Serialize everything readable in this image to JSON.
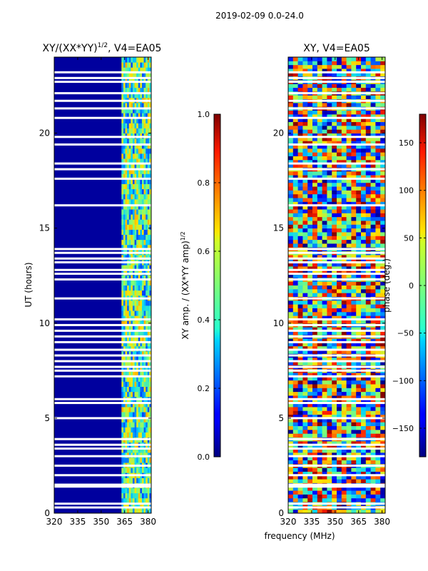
{
  "figure": {
    "suptitle": "2019-02-09 0.0-24.0",
    "shared_xlabel": "frequency (MHz)"
  },
  "chart_data": [
    {
      "type": "heatmap",
      "title_main": "XY/(XX*YY)",
      "title_sup": "1/2",
      "title_tail": ", V4=EA05",
      "xlabel": "",
      "ylabel": "UT (hours)",
      "xlim": [
        320,
        382
      ],
      "ylim": [
        0,
        24
      ],
      "xticks": [
        320,
        335,
        350,
        365,
        380
      ],
      "yticks": [
        0,
        5,
        10,
        15,
        20
      ],
      "colormap": "jet",
      "colorbar": {
        "label_main": "XY amp. / (XX*YY amp)",
        "label_sup": "1/2",
        "range": [
          0.0,
          1.0
        ],
        "ticks": [
          "0.0",
          "0.2",
          "0.4",
          "0.6",
          "0.8",
          "1.0"
        ]
      },
      "description_bands_mhz": [
        363,
        382
      ],
      "flagged_gaps_hours": [
        0.3,
        0.5,
        1.4,
        1.5,
        2.0,
        2.5,
        3.0,
        3.4,
        3.6,
        3.9,
        5.0,
        5.8,
        6.0,
        7.2,
        7.5,
        7.7,
        8.0,
        8.3,
        8.6,
        9.0,
        9.3,
        9.6,
        9.9,
        10.2,
        11.3,
        12.3,
        12.6,
        12.8,
        13.2,
        13.4,
        13.7,
        13.9,
        16.2,
        17.6,
        18.1,
        18.4,
        19.4,
        19.8,
        20.8,
        21.3,
        21.7,
        22.1,
        22.7,
        22.9,
        23.2
      ]
    },
    {
      "type": "heatmap",
      "title_main": "XY, V4=EA05",
      "title_sup": "",
      "title_tail": "",
      "xlabel": "frequency (MHz)",
      "ylabel": "",
      "xlim": [
        320,
        382
      ],
      "ylim": [
        0,
        24
      ],
      "xticks": [
        320,
        335,
        350,
        365,
        380
      ],
      "yticks": [
        0,
        5,
        10,
        15,
        20
      ],
      "colormap": "jet",
      "colorbar": {
        "label_main": "phase (deg.)",
        "label_sup": "",
        "range": [
          -180,
          180
        ],
        "ticks": [
          "-150",
          "-100",
          "-50",
          "0",
          "50",
          "100",
          "150"
        ],
        "tick_values": [
          -150,
          -100,
          -50,
          0,
          50,
          100,
          150
        ]
      },
      "flagged_gaps_hours": [
        0.3,
        0.5,
        1.4,
        1.5,
        2.0,
        2.5,
        3.0,
        3.4,
        3.6,
        3.9,
        5.0,
        5.8,
        6.0,
        7.2,
        7.5,
        7.7,
        8.0,
        8.3,
        8.6,
        9.0,
        9.3,
        9.6,
        9.9,
        10.2,
        11.3,
        12.3,
        12.6,
        12.8,
        13.2,
        13.4,
        13.7,
        13.9,
        16.2,
        17.6,
        18.1,
        18.4,
        19.4,
        19.8,
        20.8,
        21.3,
        21.7,
        22.1,
        22.7,
        22.9,
        23.2
      ]
    }
  ]
}
